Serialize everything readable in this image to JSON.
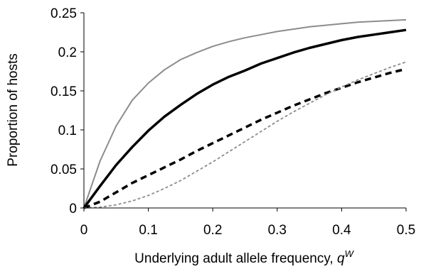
{
  "chart_data": {
    "type": "line",
    "xlabel": "Underlying adult allele frequency, ",
    "xlabel_var": "q",
    "xlabel_sup": "W",
    "ylabel": "Proportion of hosts",
    "xlim": [
      0,
      0.5
    ],
    "ylim": [
      0,
      0.25
    ],
    "x_ticks": [
      "0",
      "0.1",
      "0.2",
      "0.3",
      "0.4",
      "0.5"
    ],
    "y_ticks": [
      "0",
      "0.05",
      "0.1",
      "0.15",
      "0.2",
      "0.25"
    ],
    "grid": false,
    "legend": "none",
    "x": [
      0,
      0.025,
      0.05,
      0.075,
      0.1,
      0.125,
      0.15,
      0.175,
      0.2,
      0.225,
      0.25,
      0.275,
      0.3,
      0.325,
      0.35,
      0.375,
      0.4,
      0.425,
      0.45,
      0.475,
      0.5
    ],
    "series": [
      {
        "style": "gray-solid",
        "color": "#8c8c8c",
        "values": [
          0,
          0.06,
          0.105,
          0.138,
          0.16,
          0.177,
          0.19,
          0.199,
          0.207,
          0.213,
          0.218,
          0.222,
          0.226,
          0.229,
          0.232,
          0.234,
          0.236,
          0.238,
          0.239,
          0.24,
          0.241
        ]
      },
      {
        "style": "black-solid-thick",
        "color": "#000000",
        "values": [
          0,
          0.028,
          0.055,
          0.078,
          0.099,
          0.117,
          0.132,
          0.146,
          0.158,
          0.168,
          0.176,
          0.185,
          0.192,
          0.199,
          0.205,
          0.21,
          0.215,
          0.219,
          0.222,
          0.225,
          0.228
        ]
      },
      {
        "style": "black-dashed-thick",
        "color": "#000000",
        "values": [
          0,
          0.008,
          0.02,
          0.032,
          0.042,
          0.052,
          0.062,
          0.073,
          0.083,
          0.093,
          0.103,
          0.113,
          0.122,
          0.131,
          0.139,
          0.147,
          0.154,
          0.161,
          0.167,
          0.173,
          0.178
        ]
      },
      {
        "style": "gray-dotted",
        "color": "#8c8c8c",
        "values": [
          0,
          0.001,
          0.004,
          0.009,
          0.016,
          0.025,
          0.035,
          0.047,
          0.059,
          0.072,
          0.085,
          0.098,
          0.111,
          0.123,
          0.134,
          0.145,
          0.155,
          0.164,
          0.172,
          0.18,
          0.187
        ]
      }
    ]
  }
}
